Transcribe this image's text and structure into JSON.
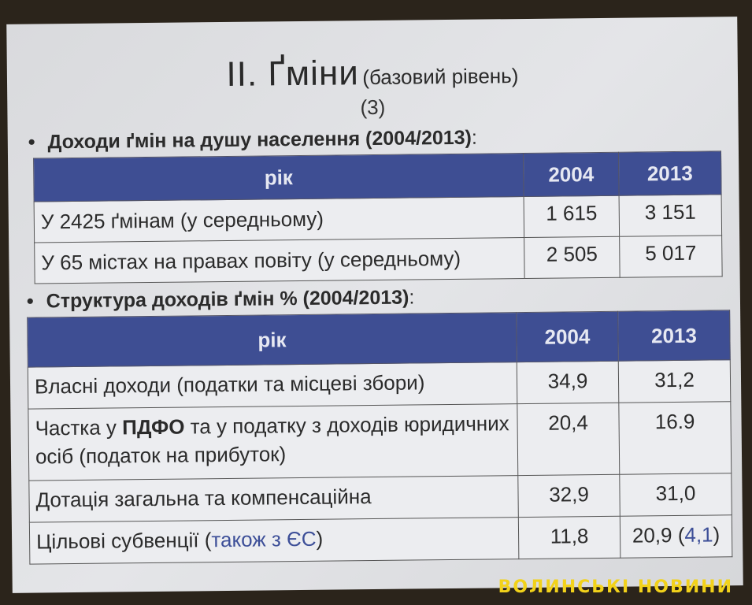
{
  "slide": {
    "title": "ІІ. Ґміни",
    "subtitle": "(базовий рівень)",
    "number": "(3)",
    "section1": {
      "heading": "Доходи ґмін на душу населення (2004/2013)",
      "colon": ":",
      "header": [
        "рік",
        "2004",
        "2013"
      ],
      "rows": [
        [
          "У 2425 ґмінам (у середньому)",
          "1 615",
          "3 151"
        ],
        [
          "У 65 містах на правах повіту (у середньому)",
          "2 505",
          "5 017"
        ]
      ]
    },
    "section2": {
      "heading": "Структура доходів ґмін % (2004/2013)",
      "colon": ":",
      "header": [
        "рік",
        "2004",
        "2013"
      ],
      "rows": [
        {
          "label": "Власні доходи (податки та місцеві збори)",
          "v2004": "34,9",
          "v2013": "31,2"
        },
        {
          "label_pre": "Частка у ",
          "label_bold": "ПДФО",
          "label_post": " та  у податку з доходів юридичних осіб (податок на прибуток)",
          "v2004": "20,4",
          "v2013": "16.9"
        },
        {
          "label": "Дотація загальна та компенсаційна",
          "v2004": "32,9",
          "v2013": "31,0"
        },
        {
          "label_pre": "Цільові субвенції (",
          "label_blue": "також з ЄС",
          "label_post": ")",
          "v2004": "11,8",
          "v2013": "20,9 (",
          "v2013_blue": "4,1",
          "v2013_post": ")"
        }
      ]
    }
  },
  "watermark": "ВОЛИНСЬКІ НОВИНИ",
  "colors": {
    "header_bg": "#3e4e93",
    "accent_blue": "#3d4f98",
    "watermark": "#f2d21a"
  }
}
